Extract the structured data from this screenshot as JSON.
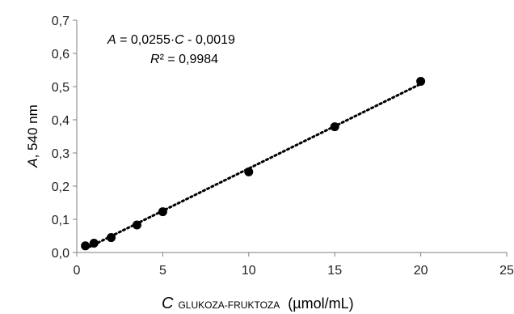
{
  "chart_data": {
    "type": "scatter",
    "x": [
      0.5,
      1,
      2,
      3.5,
      5,
      10,
      15,
      20
    ],
    "y": [
      0.02,
      0.028,
      0.045,
      0.083,
      0.123,
      0.243,
      0.379,
      0.516
    ],
    "xlim": [
      0,
      25
    ],
    "ylim": [
      0,
      0.7
    ],
    "x_ticks": [
      "0",
      "5",
      "10",
      "15",
      "20",
      "25"
    ],
    "y_ticks": [
      "0,0",
      "0,1",
      "0,2",
      "0,3",
      "0,4",
      "0,5",
      "0,6",
      "0,7"
    ],
    "trendline": {
      "type": "linear",
      "slope": 0.0255,
      "intercept": -0.0019,
      "style": "dotted",
      "x_range": [
        0.5,
        20
      ]
    },
    "equation": {
      "A": "A",
      "eq_rest": " = 0,0255·",
      "C": "C",
      "eq_tail": "  - 0,0019",
      "R": "R",
      "r2_rest": "² = 0,9984"
    },
    "ylabel": {
      "italic": "A",
      "rest": ", 540 nm"
    },
    "xlabel": {
      "italic": "C",
      "sub": "GLUKOZA-FRUKTOZA",
      "rest": "(µmol/mL)"
    },
    "grid": false,
    "legend": "none",
    "colors": {
      "marker": "#000000",
      "trendline": "#000000",
      "axis": "#7f7f7f"
    }
  }
}
